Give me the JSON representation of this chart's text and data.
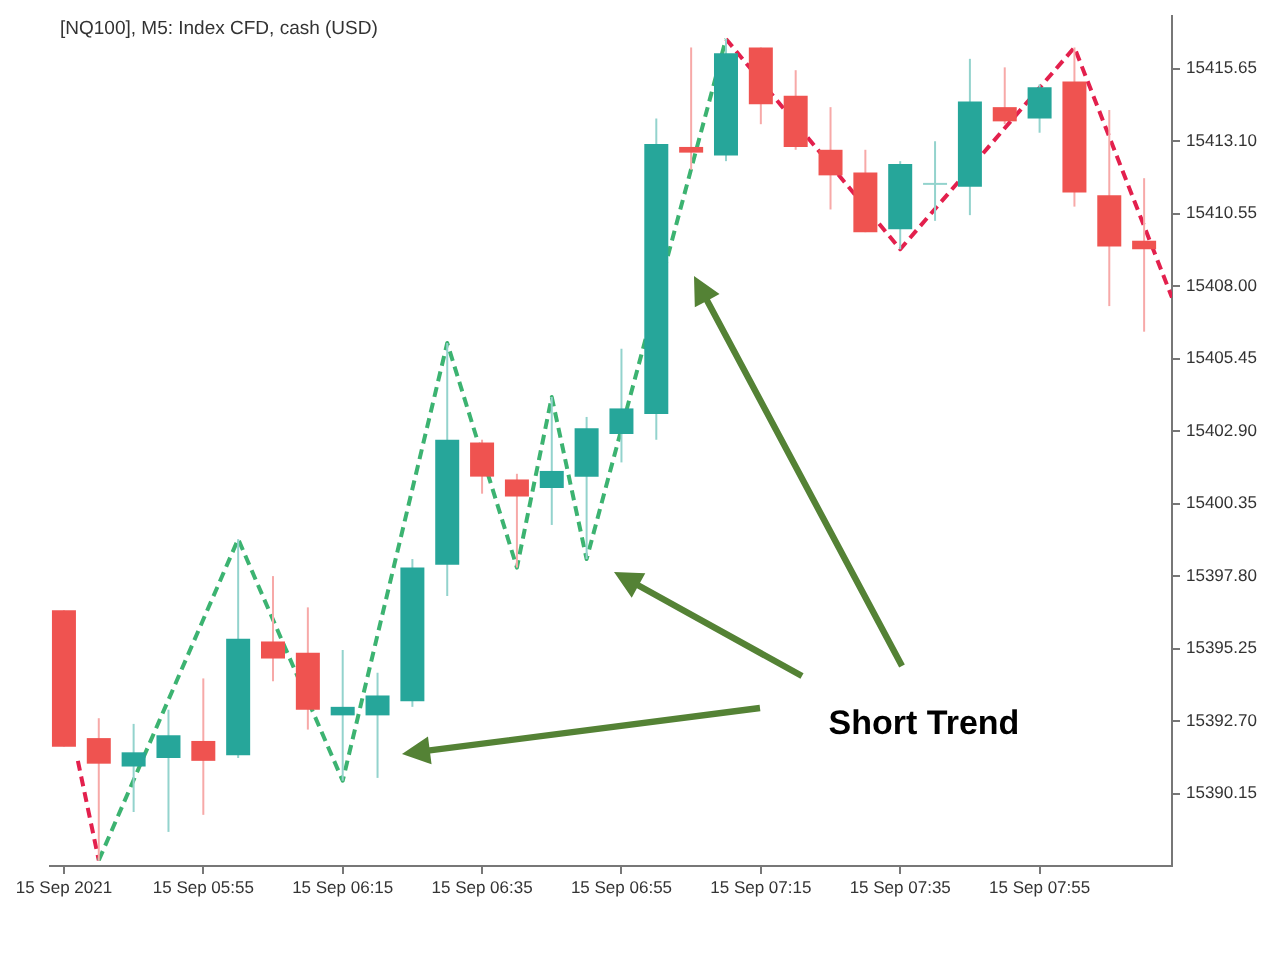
{
  "chart_data": {
    "type": "candlestick",
    "title": "[NQ100], M5: Index CFD, cash (USD)",
    "x": [
      "2021-09-15T05:35",
      "2021-09-15T05:40",
      "2021-09-15T05:45",
      "2021-09-15T05:50",
      "2021-09-15T05:55",
      "2021-09-15T06:00",
      "2021-09-15T06:05",
      "2021-09-15T06:10",
      "2021-09-15T06:15",
      "2021-09-15T06:20",
      "2021-09-15T06:25",
      "2021-09-15T06:30",
      "2021-09-15T06:35",
      "2021-09-15T06:40",
      "2021-09-15T06:45",
      "2021-09-15T06:50",
      "2021-09-15T06:55",
      "2021-09-15T07:00",
      "2021-09-15T07:05",
      "2021-09-15T07:10",
      "2021-09-15T07:15",
      "2021-09-15T07:20",
      "2021-09-15T07:25",
      "2021-09-15T07:30",
      "2021-09-15T07:35",
      "2021-09-15T07:40",
      "2021-09-15T07:45",
      "2021-09-15T07:50",
      "2021-09-15T07:55",
      "2021-09-15T08:00",
      "2021-09-15T08:05",
      "2021-09-15T08:10"
    ],
    "ohlc": [
      [
        15396.6,
        15396.6,
        15391.8,
        15391.8
      ],
      [
        15392.1,
        15392.8,
        15387.8,
        15391.2
      ],
      [
        15391.1,
        15392.6,
        15389.5,
        15391.6
      ],
      [
        15391.4,
        15393.1,
        15388.8,
        15392.2
      ],
      [
        15392.0,
        15394.2,
        15389.4,
        15391.3
      ],
      [
        15391.5,
        15399.1,
        15391.4,
        15395.6
      ],
      [
        15395.5,
        15397.8,
        15394.1,
        15394.9
      ],
      [
        15395.1,
        15396.7,
        15392.4,
        15393.1
      ],
      [
        15392.9,
        15395.2,
        15390.6,
        15393.2
      ],
      [
        15392.9,
        15394.4,
        15390.7,
        15393.6
      ],
      [
        15393.4,
        15398.4,
        15393.2,
        15398.1
      ],
      [
        15398.2,
        15406.0,
        15397.1,
        15402.6
      ],
      [
        15402.5,
        15402.6,
        15400.7,
        15401.3
      ],
      [
        15401.2,
        15401.4,
        15398.1,
        15400.6
      ],
      [
        15400.9,
        15404.1,
        15399.6,
        15401.5
      ],
      [
        15401.3,
        15403.4,
        15398.4,
        15403.0
      ],
      [
        15402.8,
        15405.8,
        15401.8,
        15403.7
      ],
      [
        15403.5,
        15413.9,
        15402.6,
        15413.0
      ],
      [
        15412.9,
        15416.4,
        15412.1,
        15412.7
      ],
      [
        15412.6,
        15416.7,
        15412.4,
        15416.2
      ],
      [
        15416.4,
        15416.4,
        15413.7,
        15414.4
      ],
      [
        15414.7,
        15415.6,
        15412.8,
        15412.9
      ],
      [
        15412.8,
        15414.3,
        15410.7,
        15411.9
      ],
      [
        15412.0,
        15412.8,
        15409.9,
        15409.9
      ],
      [
        15410.0,
        15412.4,
        15409.3,
        15412.3
      ],
      [
        15411.6,
        15413.1,
        15410.3,
        15411.6
      ],
      [
        15411.5,
        15416.0,
        15410.5,
        15414.5
      ],
      [
        15414.3,
        15415.7,
        15413.7,
        15413.8
      ],
      [
        15413.9,
        15415.1,
        15413.4,
        15415.0
      ],
      [
        15415.2,
        15416.4,
        15410.8,
        15411.3
      ],
      [
        15411.2,
        15414.2,
        15407.3,
        15409.4
      ],
      [
        15409.6,
        15411.8,
        15406.4,
        15409.3
      ]
    ],
    "colors": [
      "#ef5350",
      "#ef5350",
      "#26a69a",
      "#26a69a",
      "#ef5350",
      "#26a69a",
      "#ef5350",
      "#ef5350",
      "#26a69a",
      "#26a69a",
      "#26a69a",
      "#26a69a",
      "#ef5350",
      "#ef5350",
      "#26a69a",
      "#26a69a",
      "#26a69a",
      "#26a69a",
      "#ef5350",
      "#26a69a",
      "#ef5350",
      "#ef5350",
      "#ef5350",
      "#ef5350",
      "#26a69a",
      "#93d3cd",
      "#26a69a",
      "#ef5350",
      "#26a69a",
      "#ef5350",
      "#ef5350",
      "#ef5350"
    ],
    "series": [
      {
        "type": "line",
        "color": "#3cb371",
        "line_style": "dashed",
        "x": [
          "2021-09-15T05:40",
          "2021-09-15T06:00",
          "2021-09-15T06:15",
          "2021-09-15T06:30",
          "2021-09-15T06:40",
          "2021-09-15T06:45",
          "2021-09-15T06:50",
          "2021-09-15T07:10"
        ],
        "values": [
          15387.8,
          15399.1,
          15390.6,
          15406.0,
          15398.1,
          15404.1,
          15398.4,
          15416.7
        ]
      },
      {
        "type": "line",
        "color": "#e3204d",
        "line_style": "dashed",
        "x": [
          "2021-09-15T05:37",
          "2021-09-15T05:40"
        ],
        "values": [
          15391.3,
          15387.8
        ]
      },
      {
        "type": "line",
        "color": "#e3204d",
        "line_style": "dashed",
        "x": [
          "2021-09-15T07:10",
          "2021-09-15T07:35",
          "2021-09-15T08:00",
          "2021-09-15T08:14"
        ],
        "values": [
          15416.7,
          15409.3,
          15416.4,
          15407.6
        ]
      }
    ],
    "marker": "none",
    "xlim": [
      "2021-09-15T05:33",
      "2021-09-15T08:14"
    ],
    "xticks": [
      {
        "value": "2021-09-15T05:35",
        "label": "15 Sep 2021"
      },
      {
        "value": "2021-09-15T05:55",
        "label": "15 Sep 05:55"
      },
      {
        "value": "2021-09-15T06:15",
        "label": "15 Sep 06:15"
      },
      {
        "value": "2021-09-15T06:35",
        "label": "15 Sep 06:35"
      },
      {
        "value": "2021-09-15T06:55",
        "label": "15 Sep 06:55"
      },
      {
        "value": "2021-09-15T07:15",
        "label": "15 Sep 07:15"
      },
      {
        "value": "2021-09-15T07:35",
        "label": "15 Sep 07:35"
      },
      {
        "value": "2021-09-15T07:55",
        "label": "15 Sep 07:55"
      }
    ],
    "ylim": [
      15387.6,
      15417.5
    ],
    "yticks": [
      15390.15,
      {
        "value": 15392.7,
        "label": "15392.70"
      },
      15395.25,
      {
        "value": 15397.8,
        "label": "15397.80"
      },
      15400.35,
      {
        "value": 15402.9,
        "label": "15402.90"
      },
      15405.45,
      {
        "value": 15408,
        "label": "15408.00"
      },
      15410.55,
      {
        "value": 15413.1,
        "label": "15413.10"
      },
      15415.65
    ],
    "annotations": [
      "Short Trend"
    ]
  }
}
